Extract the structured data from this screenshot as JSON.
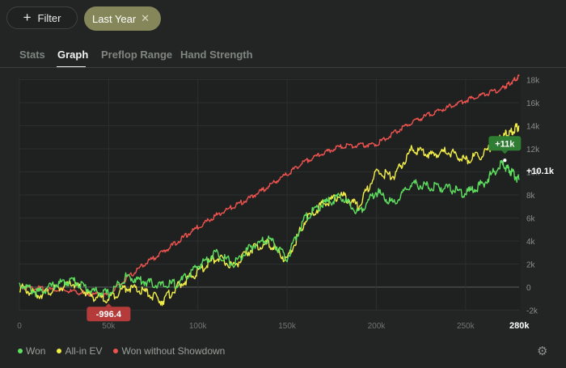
{
  "toolbar": {
    "filter_label": "Filter",
    "chip_label": "Last Year"
  },
  "tabs": [
    "Stats",
    "Graph",
    "Preflop Range",
    "Hand Strength"
  ],
  "active_tab": "Graph",
  "chart_data": {
    "type": "line",
    "x_ticks": [
      "0",
      "50k",
      "100k",
      "150k",
      "200k",
      "250k",
      "280k"
    ],
    "y_ticks": [
      "18k",
      "16k",
      "14k",
      "12k",
      "10k",
      "8k",
      "6k",
      "4k",
      "2k",
      "0",
      "-2k"
    ],
    "xlim": [
      0,
      280000
    ],
    "ylim": [
      -2000,
      18000
    ],
    "series": [
      {
        "name": "Won",
        "color": "#5fdf5f",
        "x": [
          0,
          10000,
          20000,
          30000,
          40000,
          50000,
          60000,
          70000,
          80000,
          90000,
          100000,
          110000,
          120000,
          130000,
          140000,
          150000,
          160000,
          170000,
          180000,
          190000,
          200000,
          210000,
          220000,
          230000,
          240000,
          250000,
          260000,
          270000,
          275000,
          280000
        ],
        "values": [
          300,
          -500,
          200,
          600,
          -300,
          -600,
          900,
          500,
          100,
          400,
          1800,
          3000,
          2000,
          3500,
          4200,
          2500,
          6000,
          7200,
          7800,
          6500,
          8300,
          7200,
          9000,
          8700,
          8600,
          8100,
          9000,
          10700,
          10100,
          9300
        ]
      },
      {
        "name": "All-in EV",
        "color": "#f2ee48",
        "x": [
          0,
          10000,
          20000,
          30000,
          40000,
          50000,
          60000,
          70000,
          80000,
          90000,
          100000,
          110000,
          120000,
          130000,
          140000,
          150000,
          160000,
          170000,
          180000,
          190000,
          200000,
          210000,
          220000,
          230000,
          240000,
          250000,
          260000,
          270000,
          275000,
          280000
        ],
        "values": [
          0,
          -700,
          -200,
          300,
          -800,
          -996.4,
          0,
          -400,
          -1200,
          200,
          1300,
          2600,
          1800,
          3300,
          3800,
          2300,
          5800,
          7200,
          8000,
          7000,
          10000,
          9600,
          12000,
          11500,
          11800,
          11000,
          11500,
          13000,
          13400,
          14000
        ]
      },
      {
        "name": "Won without Showdown",
        "color": "#ef5350",
        "x": [
          0,
          10000,
          20000,
          30000,
          40000,
          50000,
          60000,
          70000,
          80000,
          90000,
          100000,
          110000,
          120000,
          130000,
          140000,
          150000,
          160000,
          170000,
          180000,
          190000,
          200000,
          210000,
          220000,
          230000,
          240000,
          250000,
          260000,
          270000,
          275000,
          280000
        ],
        "values": [
          0,
          -100,
          -200,
          -400,
          -600,
          -700,
          700,
          2000,
          3000,
          4100,
          5200,
          6200,
          7000,
          7800,
          8800,
          9800,
          10900,
          11600,
          12200,
          12300,
          12400,
          13400,
          14300,
          15000,
          15600,
          16200,
          16700,
          17200,
          17700,
          18300
        ]
      }
    ],
    "annotations": [
      {
        "text": "-996.4",
        "x": 50000,
        "y": -996.4,
        "color": "#b53a3a"
      },
      {
        "text": "+11k",
        "x": 272000,
        "y": 11000,
        "color": "#2e7d32"
      }
    ],
    "end_label": "+10.1k",
    "grid": true,
    "legend_position": "bottom-left"
  }
}
